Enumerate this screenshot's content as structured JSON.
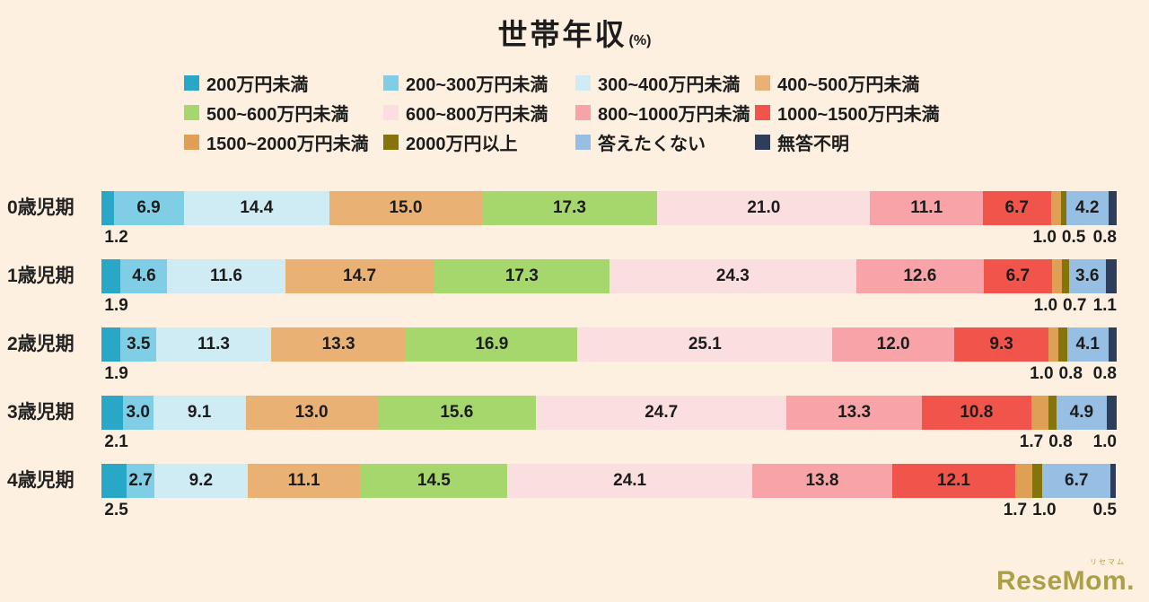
{
  "colors": {
    "background": "#fdf0e0",
    "text": "#1c1c1c",
    "logo": "#ad9f45"
  },
  "logo": {
    "text": "ReseMom.",
    "sub": "リセマム"
  },
  "chart_data": {
    "type": "bar",
    "stacked": true,
    "orientation": "horizontal",
    "title": "世帯年収",
    "unit_label": "(%)",
    "xlabel": "",
    "ylabel": "",
    "xlim": [
      0,
      100
    ],
    "legend_position": "top",
    "categories": [
      "0歳児期",
      "1歳児期",
      "2歳児期",
      "3歳児期",
      "4歳児期"
    ],
    "series": [
      {
        "name": "200万円未満",
        "color": "#28a8c6",
        "values": [
          1.2,
          1.9,
          1.9,
          2.1,
          2.5
        ]
      },
      {
        "name": "200~300万円未満",
        "color": "#7fcee6",
        "values": [
          6.9,
          4.6,
          3.5,
          3.0,
          2.7
        ]
      },
      {
        "name": "300~400万円未満",
        "color": "#cfecf4",
        "values": [
          14.4,
          11.6,
          11.3,
          9.1,
          9.2
        ]
      },
      {
        "name": "400~500万円未満",
        "color": "#e9b274",
        "values": [
          15.0,
          14.7,
          13.3,
          13.0,
          11.1
        ]
      },
      {
        "name": "500~600万円未満",
        "color": "#a6d76d",
        "values": [
          17.3,
          17.3,
          16.9,
          15.6,
          14.5
        ]
      },
      {
        "name": "600~800万円未満",
        "color": "#fbdfe0",
        "values": [
          21.0,
          24.3,
          25.1,
          24.7,
          24.1
        ]
      },
      {
        "name": "800~1000万円未満",
        "color": "#f8a3a8",
        "values": [
          11.1,
          12.6,
          12.0,
          13.3,
          13.8
        ]
      },
      {
        "name": "1000~1500万円未満",
        "color": "#f0544b",
        "values": [
          6.7,
          6.7,
          9.3,
          10.8,
          12.1
        ]
      },
      {
        "name": "1500~2000万円未満",
        "color": "#dfa055",
        "values": [
          1.0,
          1.0,
          1.0,
          1.7,
          1.7
        ]
      },
      {
        "name": "2000万円以上",
        "color": "#857409",
        "values": [
          0.5,
          0.7,
          0.8,
          0.8,
          1.0
        ]
      },
      {
        "name": "答えたくない",
        "color": "#96bfe3",
        "values": [
          4.2,
          3.6,
          4.1,
          4.9,
          6.7
        ]
      },
      {
        "name": "無答不明",
        "color": "#2e3d59",
        "values": [
          0.8,
          1.1,
          0.8,
          1.0,
          0.5
        ]
      }
    ]
  }
}
